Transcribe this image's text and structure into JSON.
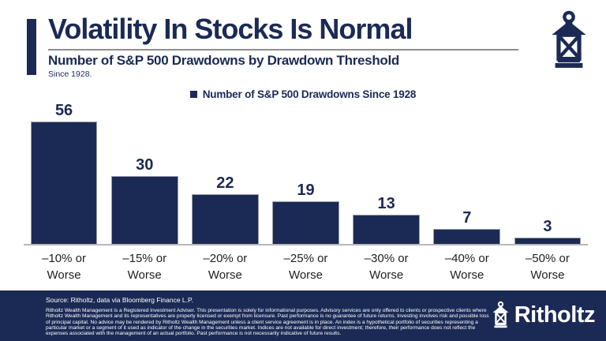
{
  "header": {
    "title": "Volatility In Stocks Is Normal",
    "subtitle": "Number of S&P 500 Drawdowns by Drawdown Threshold",
    "since": "Since 1928."
  },
  "legend": {
    "label": "Number of S&P 500 Drawdowns Since 1928"
  },
  "chart_data": {
    "type": "bar",
    "title": "Number of S&P 500 Drawdowns by Drawdown Threshold",
    "subtitle": "Since 1928.",
    "series_name": "Number of S&P 500 Drawdowns Since 1928",
    "categories": [
      "–10% or Worse",
      "–15% or Worse",
      "–20% or Worse",
      "–25% or Worse",
      "–30% or Worse",
      "–40% or Worse",
      "–50% or Worse"
    ],
    "values": [
      56,
      30,
      22,
      19,
      13,
      7,
      3
    ],
    "xlabel": "",
    "ylabel": "",
    "ylim": [
      0,
      60
    ],
    "grid": false,
    "legend_position": "top-center",
    "bar_color": "#1b2a55",
    "value_labels": true
  },
  "footer": {
    "source": "Source: Ritholtz, data via Bloomberg Finance L.P.",
    "disclaimer": "Ritholtz Wealth Management is a Registered Investment Adviser. This presentation is solely for informational purposes. Advisory services are only offered to clients or prospective clients where Ritholtz Wealth Management and its representatives are properly licensed or exempt from licensure. Past performance is no guarantee of future returns. Investing involves risk and possible loss of principal capital. No advice may be rendered by Ritholtz Wealth Management unless a client service agreement is in place. An index is a hypothetical portfolio of securities representing a particular market or a segment of it used as indicator of the change in the securities market. Indices are not available for direct investment; therefore, their performance does not reflect the expenses associated with the management of an actual portfolio. Past performance is not necessarily indicative of future results.",
    "brand": "Ritholtz"
  },
  "colors": {
    "navy": "#1b2a55",
    "text_dark": "#1f1f1f",
    "axis_gray": "#b8b8b8",
    "underline_gray": "#8f8f8f",
    "white": "#ffffff"
  }
}
